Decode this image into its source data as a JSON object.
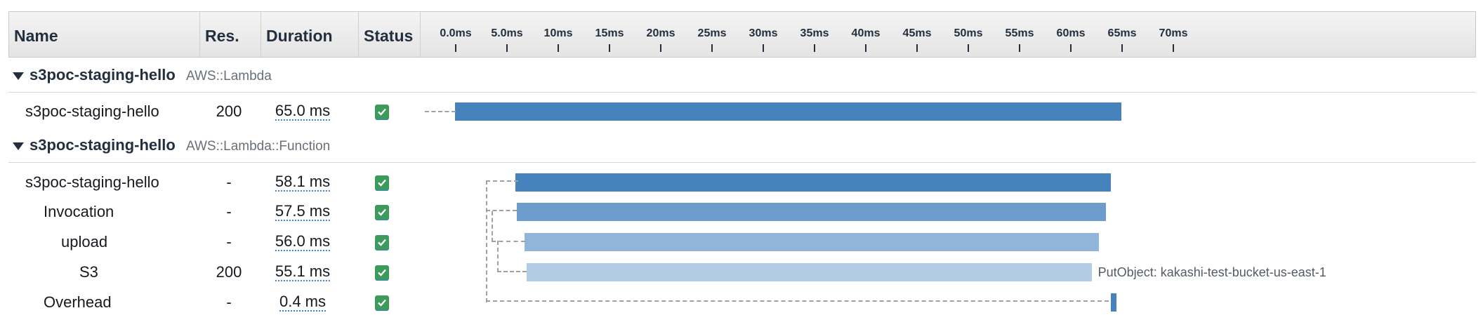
{
  "columns": {
    "name": "Name",
    "res": "Res.",
    "duration": "Duration",
    "status": "Status"
  },
  "timeline_ticks": [
    "0.0ms",
    "5.0ms",
    "10ms",
    "15ms",
    "20ms",
    "25ms",
    "30ms",
    "35ms",
    "40ms",
    "45ms",
    "50ms",
    "55ms",
    "60ms",
    "65ms",
    "70ms"
  ],
  "groups": [
    {
      "name": "s3poc-staging-hello",
      "type": "AWS::Lambda"
    },
    {
      "name": "s3poc-staging-hello",
      "type": "AWS::Lambda::Function"
    }
  ],
  "rows": [
    {
      "name": "s3poc-staging-hello",
      "res": "200",
      "duration": "65.0 ms",
      "status": "ok",
      "start_ms": 0.0,
      "duration_ms": 65.0,
      "color": "#4682bb"
    },
    {
      "name": "s3poc-staging-hello",
      "res": "-",
      "duration": "58.1 ms",
      "status": "ok",
      "start_ms": 5.9,
      "duration_ms": 58.1,
      "color": "#4682bb"
    },
    {
      "name": "Invocation",
      "res": "-",
      "duration": "57.5 ms",
      "status": "ok",
      "start_ms": 6.0,
      "duration_ms": 57.5,
      "color": "#6c9ccb"
    },
    {
      "name": "upload",
      "res": "-",
      "duration": "56.0 ms",
      "status": "ok",
      "start_ms": 6.8,
      "duration_ms": 56.0,
      "color": "#91b4d9"
    },
    {
      "name": "S3",
      "res": "200",
      "duration": "55.1 ms",
      "status": "ok",
      "start_ms": 7.0,
      "duration_ms": 55.1,
      "color": "#b3cce5",
      "annotation": "PutObject: kakashi-test-bucket-us-east-1"
    },
    {
      "name": "Overhead",
      "res": "-",
      "duration": "0.4 ms",
      "status": "ok",
      "start_ms": 64.0,
      "duration_ms": 0.4,
      "color": "#4682bb"
    }
  ],
  "colors": {
    "check": "#3c9a5a",
    "bar_primary": "#4682bb"
  }
}
